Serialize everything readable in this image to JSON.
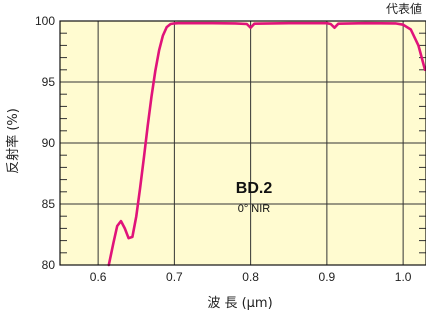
{
  "chart_data": {
    "type": "line",
    "corner_note": "代表値",
    "xlabel": "波 長 (μm)",
    "ylabel": "反射率 (%)",
    "x_ticks": [
      "0.6",
      "0.7",
      "0.8",
      "0.9",
      "1.0"
    ],
    "y_ticks": [
      "80",
      "85",
      "90",
      "95",
      "100"
    ],
    "xlim": [
      0.55,
      1.03
    ],
    "ylim": [
      80,
      100
    ],
    "grid": true,
    "background_color": "#fffbd0",
    "line_color": "#e0137a",
    "annotation": {
      "title": "BD.2",
      "subtitle": "0° NIR"
    },
    "series": [
      {
        "x": [
          0.614,
          0.62,
          0.625,
          0.63,
          0.635,
          0.64,
          0.645,
          0.65,
          0.655,
          0.66,
          0.665,
          0.67,
          0.675,
          0.68,
          0.685,
          0.69,
          0.695,
          0.7,
          0.705,
          0.71,
          0.75,
          0.78,
          0.795,
          0.8,
          0.805,
          0.85,
          0.9,
          0.905,
          0.91,
          0.915,
          0.95,
          0.99,
          1.0,
          1.01,
          1.02,
          1.03
        ],
        "y": [
          80.0,
          81.8,
          83.2,
          83.6,
          83.0,
          82.2,
          82.3,
          84.0,
          86.3,
          88.8,
          91.4,
          93.8,
          95.9,
          97.6,
          98.8,
          99.5,
          99.75,
          99.8,
          99.82,
          99.82,
          99.82,
          99.8,
          99.75,
          99.45,
          99.78,
          99.82,
          99.82,
          99.75,
          99.45,
          99.78,
          99.82,
          99.8,
          99.7,
          99.3,
          98.0,
          96.0
        ]
      }
    ]
  }
}
